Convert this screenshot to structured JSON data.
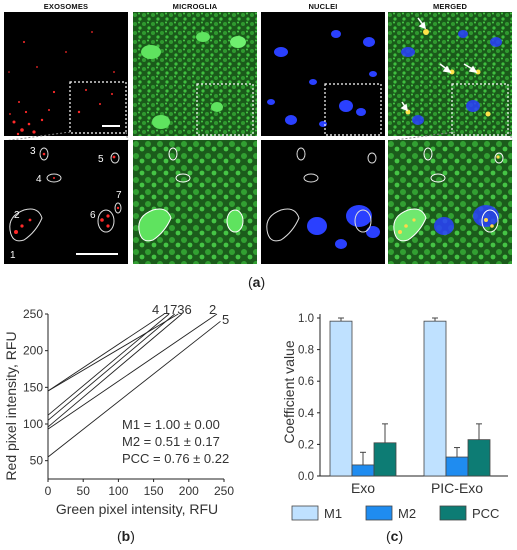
{
  "channels": [
    "EXOSOMES",
    "MICROGLIA",
    "NUCLEI",
    "MERGED"
  ],
  "roi_numbers": [
    "1",
    "2",
    "3",
    "4",
    "5",
    "6",
    "7"
  ],
  "panel_labels": {
    "a": "a",
    "b": "b",
    "c": "c"
  },
  "colors": {
    "exosome": "#ff2020",
    "microglia": "#2ecc2e",
    "nuclei": "#2040ff",
    "m1": "#bfe1ff",
    "m2": "#1f8cf0",
    "pcc": "#0d7c74"
  },
  "chart_data": [
    {
      "type": "line",
      "xlabel": "Green pixel intensity, RFU",
      "ylabel": "Red pixel intensity, RFU",
      "xlim": [
        0,
        250
      ],
      "ylim": [
        25,
        250
      ],
      "xticks": [
        0,
        50,
        100,
        150,
        200,
        250
      ],
      "yticks": [
        50,
        100,
        150,
        200,
        250
      ],
      "series": [
        {
          "label": "1",
          "x": [
            0,
            185
          ],
          "y": [
            145,
            250
          ]
        },
        {
          "label": "4",
          "x": [
            0,
            165
          ],
          "y": [
            145,
            250
          ]
        },
        {
          "label": "7",
          "x": [
            0,
            172
          ],
          "y": [
            112,
            250
          ]
        },
        {
          "label": "3",
          "x": [
            0,
            180
          ],
          "y": [
            105,
            250
          ]
        },
        {
          "label": "6",
          "x": [
            0,
            190
          ],
          "y": [
            96,
            250
          ]
        },
        {
          "label": "2",
          "x": [
            0,
            240
          ],
          "y": [
            93,
            250
          ]
        },
        {
          "label": "5",
          "x": [
            0,
            245
          ],
          "y": [
            55,
            240
          ]
        }
      ],
      "annotation_labels": {
        "top_group": "4 1736",
        "mid": "2",
        "right": "5"
      },
      "stats": [
        "M1 = 1.00 ± 0.00",
        "M2 = 0.51 ± 0.17",
        "PCC = 0.76 ± 0.22"
      ]
    },
    {
      "type": "bar",
      "ylabel": "Coefficient value",
      "categories": [
        "Exo",
        "PIC-Exo"
      ],
      "ylim": [
        0,
        1.0
      ],
      "yticks": [
        "0.0",
        "0.2",
        "0.4",
        "0.6",
        "0.8",
        "1.0"
      ],
      "series": [
        {
          "name": "M1",
          "values": [
            0.98,
            0.98
          ],
          "errors": [
            0.02,
            0.02
          ]
        },
        {
          "name": "M2",
          "values": [
            0.07,
            0.12
          ],
          "errors": [
            0.08,
            0.06
          ]
        },
        {
          "name": "PCC",
          "values": [
            0.21,
            0.23
          ],
          "errors": [
            0.12,
            0.1
          ]
        }
      ],
      "legend_position": "bottom"
    }
  ]
}
